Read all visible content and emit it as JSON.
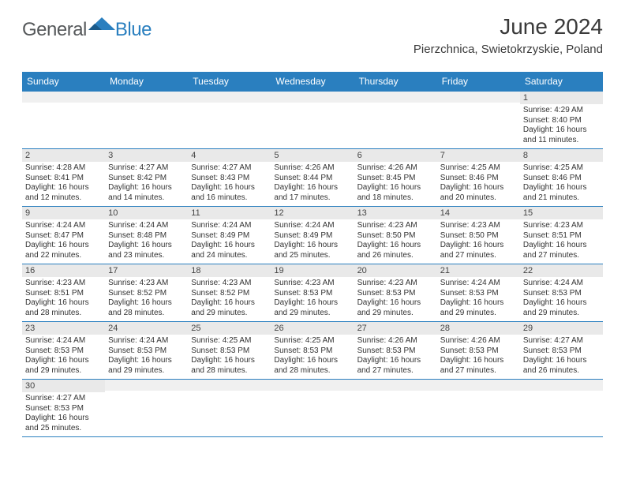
{
  "brand": {
    "part1": "General",
    "part2": "Blue"
  },
  "title": "June 2024",
  "location": "Pierzchnica, Swietokrzyskie, Poland",
  "colors": {
    "accent": "#2a7fbf",
    "header_bg": "#2a7fbf",
    "row_alt": "#e9e9e9",
    "text": "#333333"
  },
  "days_of_week": [
    "Sunday",
    "Monday",
    "Tuesday",
    "Wednesday",
    "Thursday",
    "Friday",
    "Saturday"
  ],
  "labels": {
    "sunrise": "Sunrise:",
    "sunset": "Sunset:",
    "daylight": "Daylight:"
  },
  "weeks": [
    [
      null,
      null,
      null,
      null,
      null,
      null,
      {
        "n": "1",
        "sunrise": "4:29 AM",
        "sunset": "8:40 PM",
        "daylight": "16 hours and 11 minutes."
      }
    ],
    [
      {
        "n": "2",
        "sunrise": "4:28 AM",
        "sunset": "8:41 PM",
        "daylight": "16 hours and 12 minutes."
      },
      {
        "n": "3",
        "sunrise": "4:27 AM",
        "sunset": "8:42 PM",
        "daylight": "16 hours and 14 minutes."
      },
      {
        "n": "4",
        "sunrise": "4:27 AM",
        "sunset": "8:43 PM",
        "daylight": "16 hours and 16 minutes."
      },
      {
        "n": "5",
        "sunrise": "4:26 AM",
        "sunset": "8:44 PM",
        "daylight": "16 hours and 17 minutes."
      },
      {
        "n": "6",
        "sunrise": "4:26 AM",
        "sunset": "8:45 PM",
        "daylight": "16 hours and 18 minutes."
      },
      {
        "n": "7",
        "sunrise": "4:25 AM",
        "sunset": "8:46 PM",
        "daylight": "16 hours and 20 minutes."
      },
      {
        "n": "8",
        "sunrise": "4:25 AM",
        "sunset": "8:46 PM",
        "daylight": "16 hours and 21 minutes."
      }
    ],
    [
      {
        "n": "9",
        "sunrise": "4:24 AM",
        "sunset": "8:47 PM",
        "daylight": "16 hours and 22 minutes."
      },
      {
        "n": "10",
        "sunrise": "4:24 AM",
        "sunset": "8:48 PM",
        "daylight": "16 hours and 23 minutes."
      },
      {
        "n": "11",
        "sunrise": "4:24 AM",
        "sunset": "8:49 PM",
        "daylight": "16 hours and 24 minutes."
      },
      {
        "n": "12",
        "sunrise": "4:24 AM",
        "sunset": "8:49 PM",
        "daylight": "16 hours and 25 minutes."
      },
      {
        "n": "13",
        "sunrise": "4:23 AM",
        "sunset": "8:50 PM",
        "daylight": "16 hours and 26 minutes."
      },
      {
        "n": "14",
        "sunrise": "4:23 AM",
        "sunset": "8:50 PM",
        "daylight": "16 hours and 27 minutes."
      },
      {
        "n": "15",
        "sunrise": "4:23 AM",
        "sunset": "8:51 PM",
        "daylight": "16 hours and 27 minutes."
      }
    ],
    [
      {
        "n": "16",
        "sunrise": "4:23 AM",
        "sunset": "8:51 PM",
        "daylight": "16 hours and 28 minutes."
      },
      {
        "n": "17",
        "sunrise": "4:23 AM",
        "sunset": "8:52 PM",
        "daylight": "16 hours and 28 minutes."
      },
      {
        "n": "18",
        "sunrise": "4:23 AM",
        "sunset": "8:52 PM",
        "daylight": "16 hours and 29 minutes."
      },
      {
        "n": "19",
        "sunrise": "4:23 AM",
        "sunset": "8:53 PM",
        "daylight": "16 hours and 29 minutes."
      },
      {
        "n": "20",
        "sunrise": "4:23 AM",
        "sunset": "8:53 PM",
        "daylight": "16 hours and 29 minutes."
      },
      {
        "n": "21",
        "sunrise": "4:24 AM",
        "sunset": "8:53 PM",
        "daylight": "16 hours and 29 minutes."
      },
      {
        "n": "22",
        "sunrise": "4:24 AM",
        "sunset": "8:53 PM",
        "daylight": "16 hours and 29 minutes."
      }
    ],
    [
      {
        "n": "23",
        "sunrise": "4:24 AM",
        "sunset": "8:53 PM",
        "daylight": "16 hours and 29 minutes."
      },
      {
        "n": "24",
        "sunrise": "4:24 AM",
        "sunset": "8:53 PM",
        "daylight": "16 hours and 29 minutes."
      },
      {
        "n": "25",
        "sunrise": "4:25 AM",
        "sunset": "8:53 PM",
        "daylight": "16 hours and 28 minutes."
      },
      {
        "n": "26",
        "sunrise": "4:25 AM",
        "sunset": "8:53 PM",
        "daylight": "16 hours and 28 minutes."
      },
      {
        "n": "27",
        "sunrise": "4:26 AM",
        "sunset": "8:53 PM",
        "daylight": "16 hours and 27 minutes."
      },
      {
        "n": "28",
        "sunrise": "4:26 AM",
        "sunset": "8:53 PM",
        "daylight": "16 hours and 27 minutes."
      },
      {
        "n": "29",
        "sunrise": "4:27 AM",
        "sunset": "8:53 PM",
        "daylight": "16 hours and 26 minutes."
      }
    ],
    [
      {
        "n": "30",
        "sunrise": "4:27 AM",
        "sunset": "8:53 PM",
        "daylight": "16 hours and 25 minutes."
      },
      null,
      null,
      null,
      null,
      null,
      null
    ]
  ]
}
